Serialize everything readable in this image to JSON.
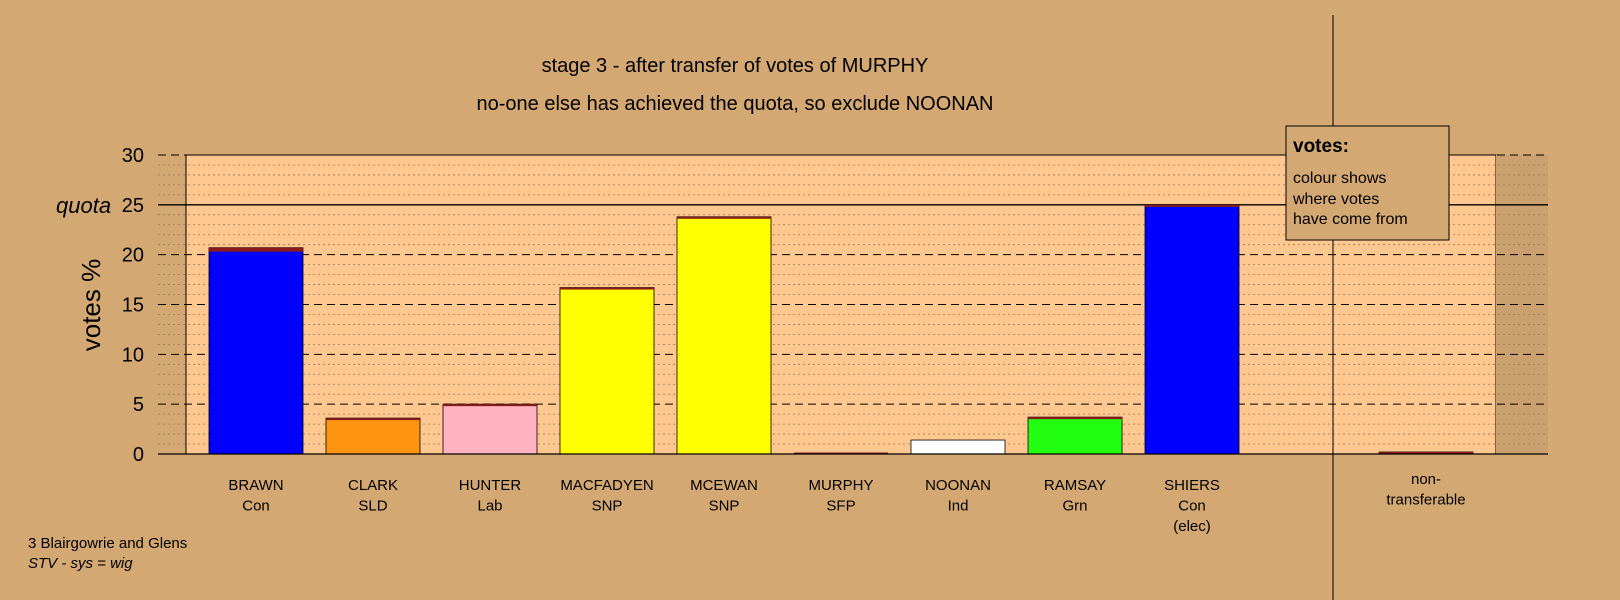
{
  "chart_data": {
    "type": "bar",
    "title": "stage 3 - after transfer of votes of MURPHY",
    "subtitle": "no-one else has achieved the quota, so exclude NOONAN",
    "ylabel": "votes %",
    "ylim": [
      0,
      30
    ],
    "yticks": [
      0,
      5,
      10,
      15,
      20,
      25,
      30
    ],
    "quota": 25,
    "quota_label": "quota",
    "grid": true,
    "categories": [
      [
        "BRAWN",
        "Con"
      ],
      [
        "CLARK",
        "SLD"
      ],
      [
        "HUNTER",
        "Lab"
      ],
      [
        "MACFADYEN",
        "SNP"
      ],
      [
        "MCEWAN",
        "SNP"
      ],
      [
        "MURPHY",
        "SFP"
      ],
      [
        "NOONAN",
        "Ind"
      ],
      [
        "RAMSAY",
        "Grn"
      ],
      [
        "SHIERS",
        "Con",
        "(elec)"
      ],
      [
        "non-",
        "transferable"
      ]
    ],
    "values": [
      20.7,
      3.6,
      5.0,
      16.7,
      23.8,
      0,
      1.4,
      3.7,
      25.0,
      0.2
    ],
    "colors": [
      "#0000ff",
      "#ff9410",
      "#ffb2c1",
      "#ffff00",
      "#ffff00",
      "#8b1a1a",
      "#ffffff",
      "#22ff10",
      "#0000ff",
      "#8b1a1a"
    ],
    "transfer_caps": [
      0.4,
      0.2,
      0.1,
      0.2,
      0.2,
      0,
      0,
      0.2,
      0.1,
      0.2
    ],
    "transfer_color": "#8b1a1a",
    "legend": {
      "title": "votes:",
      "lines": [
        "colour shows",
        "where votes",
        "have come from"
      ],
      "position": "top-right"
    }
  },
  "footer": {
    "line1": "3 Blairgowrie and Glens",
    "line2": "STV - sys = wig"
  }
}
